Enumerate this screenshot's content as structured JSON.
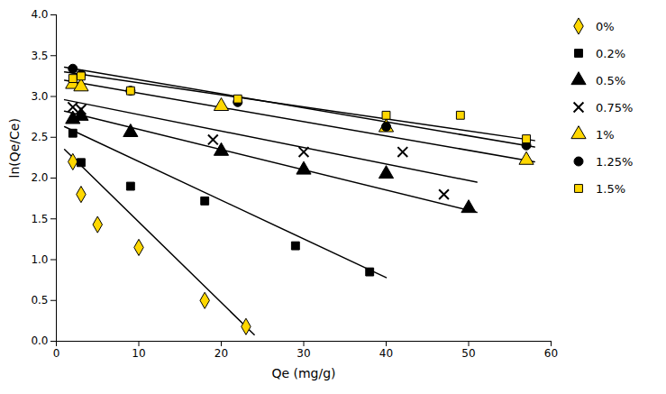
{
  "chart_data": {
    "type": "scatter",
    "xlabel": "Qe (mg/g)",
    "ylabel": "ln(Qe/Ce)",
    "xlim": [
      0,
      60
    ],
    "ylim": [
      0,
      4
    ],
    "xticks": [
      0,
      10,
      20,
      30,
      40,
      50,
      60
    ],
    "yticks": [
      {
        "value": 0,
        "label": "0.0"
      },
      0.5,
      {
        "value": 1.0,
        "label": "1.0"
      },
      1.5,
      {
        "value": 2.0,
        "label": "2.0"
      },
      2.5,
      {
        "value": 3.0,
        "label": "3.0"
      },
      3.5,
      {
        "value": 4.0,
        "label": "4.0"
      }
    ],
    "grid": false,
    "legend": "right",
    "series": [
      {
        "name": "0%",
        "color": "#FFD700",
        "marker": "diamond",
        "x": [
          2,
          3,
          5,
          10,
          18,
          23
        ],
        "values": [
          2.2,
          1.8,
          1.43,
          1.15,
          0.5,
          0.18
        ],
        "trendline": {
          "type": "line",
          "color": "#000000",
          "x": [
            1,
            24
          ],
          "values": [
            2.35,
            0.08
          ]
        }
      },
      {
        "name": "0.2%",
        "color": "#000000",
        "marker": "square",
        "x": [
          2,
          3,
          9,
          18,
          29,
          38
        ],
        "values": [
          2.55,
          2.19,
          1.9,
          1.72,
          1.17,
          0.85
        ],
        "trendline": {
          "type": "line",
          "color": "#000000",
          "x": [
            1,
            40
          ],
          "values": [
            2.63,
            0.78
          ]
        }
      },
      {
        "name": "0.5%",
        "color": "#000000",
        "marker": "triangle",
        "x": [
          2,
          3,
          9,
          20,
          30,
          40,
          50
        ],
        "values": [
          2.72,
          2.76,
          2.56,
          2.33,
          2.1,
          2.05,
          1.63
        ],
        "trendline": {
          "type": "line",
          "color": "#000000",
          "x": [
            1,
            51
          ],
          "values": [
            2.82,
            1.58
          ]
        }
      },
      {
        "name": "0.75%",
        "color": "#000000",
        "marker": "times",
        "x": [
          2,
          3,
          19,
          30,
          42,
          47
        ],
        "values": [
          2.87,
          2.84,
          2.47,
          2.32,
          2.32,
          1.8
        ],
        "trendline": {
          "type": "line",
          "color": "#000000",
          "x": [
            1,
            51
          ],
          "values": [
            2.96,
            1.95
          ]
        }
      },
      {
        "name": "1%",
        "color": "#FFD700",
        "marker": "triangle",
        "x": [
          2,
          3,
          20,
          40,
          57
        ],
        "values": [
          3.15,
          3.12,
          2.88,
          2.62,
          2.22
        ],
        "trendline": {
          "type": "line",
          "color": "#000000",
          "x": [
            1,
            58
          ],
          "values": [
            3.2,
            2.2
          ]
        }
      },
      {
        "name": "1.25%",
        "color": "#000000",
        "marker": "circle",
        "x": [
          2,
          3,
          9,
          22,
          40,
          57
        ],
        "values": [
          3.34,
          3.27,
          3.07,
          2.93,
          2.63,
          2.4
        ],
        "trendline": {
          "type": "line",
          "color": "#000000",
          "x": [
            1,
            58
          ],
          "values": [
            3.36,
            2.38
          ]
        }
      },
      {
        "name": "1.5%",
        "color": "#FFD700",
        "marker": "square",
        "x": [
          2,
          3,
          9,
          22,
          40,
          49,
          57
        ],
        "values": [
          3.22,
          3.25,
          3.07,
          2.97,
          2.77,
          2.77,
          2.48
        ],
        "trendline": {
          "type": "line",
          "color": "#000000",
          "x": [
            1,
            58
          ],
          "values": [
            3.3,
            2.46
          ]
        }
      }
    ]
  }
}
